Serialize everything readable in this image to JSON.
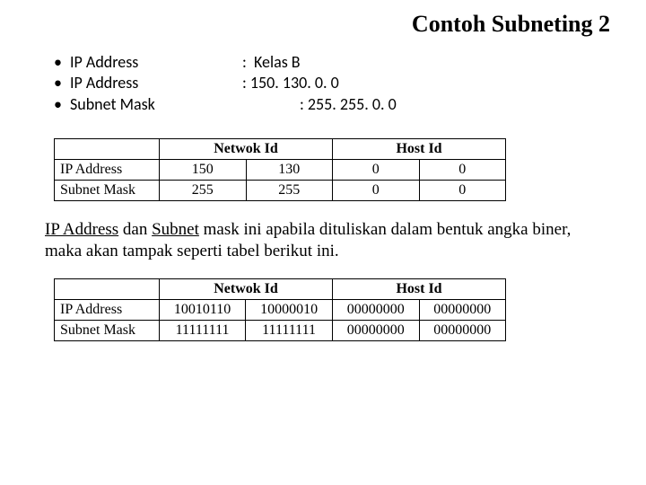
{
  "title": "Contoh Subneting 2",
  "info": {
    "labels": [
      "IP Address",
      "IP Address",
      "Subnet Mask"
    ],
    "values": [
      " Kelas B",
      "150. 130. 0. 0",
      "255. 255. 0. 0"
    ]
  },
  "table1": {
    "headers": {
      "netid": "Netwok Id",
      "hostid": "Host Id"
    },
    "rows": [
      {
        "label": "IP Address",
        "c1": "150",
        "c2": "130",
        "c3": "0",
        "c4": "0"
      },
      {
        "label": "Subnet Mask",
        "c1": "255",
        "c2": "255",
        "c3": "0",
        "c4": "0"
      }
    ]
  },
  "paragraph": {
    "u1": "IP Address",
    "t1": " dan ",
    "u2": "Subnet",
    "t2": " mask ini apabila dituliskan dalam bentuk angka biner, maka akan tampak seperti tabel berikut ini."
  },
  "table2": {
    "headers": {
      "netid": "Netwok Id",
      "hostid": "Host Id"
    },
    "rows": [
      {
        "label": "IP Address",
        "c1": "10010110",
        "c2": "10000010",
        "c3": "00000000",
        "c4": "00000000"
      },
      {
        "label": "Subnet Mask",
        "c1": "11111111",
        "c2": "11111111",
        "c3": "00000000",
        "c4": "00000000"
      }
    ]
  },
  "style": {
    "font_title": "Times New Roman",
    "font_body": "Calibri",
    "title_fontsize": 26,
    "body_fontsize": 18,
    "table_fontsize": 16,
    "paragraph_fontsize": 19,
    "border_color": "#000000",
    "background_color": "#ffffff",
    "text_color": "#000000",
    "table1_col_widths": {
      "label": 100,
      "net": 180,
      "host": 180
    },
    "table2_col_widths": {
      "label": 100,
      "net": 180,
      "host": 180
    }
  }
}
